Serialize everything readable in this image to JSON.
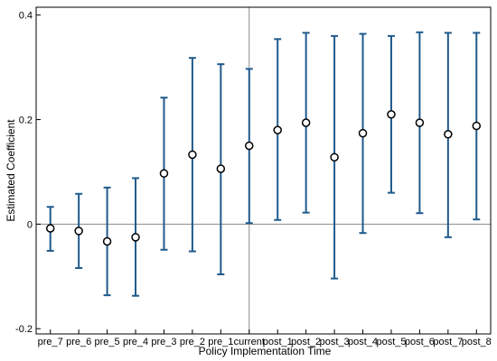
{
  "chart_data": {
    "type": "scatter",
    "subtype": "coefficient-plot-with-error-bars",
    "title": "",
    "xlabel": "Policy Implementation Time",
    "ylabel": "Estimated Coefficient",
    "ylim": [
      -0.21,
      0.415
    ],
    "yticks": [
      -0.2,
      0,
      0.2,
      0.4
    ],
    "ytick_labels": [
      "-0.2",
      "0",
      "0.2",
      "0.4"
    ],
    "categories": [
      "pre_7",
      "pre_6",
      "pre_5",
      "pre_4",
      "pre_3",
      "pre_2",
      "pre_1",
      "current",
      "post_1",
      "post_2",
      "post_3",
      "post_4",
      "post_5",
      "post_6",
      "post_7",
      "post_8"
    ],
    "series": [
      {
        "estimates": [
          -0.008,
          -0.013,
          -0.033,
          -0.025,
          0.097,
          0.133,
          0.106,
          0.15,
          0.18,
          0.194,
          0.128,
          0.174,
          0.21,
          0.194,
          0.172,
          0.188
        ],
        "ci_lower": [
          -0.051,
          -0.084,
          -0.136,
          -0.137,
          -0.049,
          -0.052,
          -0.096,
          0.002,
          0.008,
          0.022,
          -0.104,
          -0.017,
          0.06,
          0.021,
          -0.025,
          0.009
        ],
        "ci_upper": [
          0.033,
          0.058,
          0.07,
          0.088,
          0.242,
          0.318,
          0.306,
          0.297,
          0.354,
          0.366,
          0.36,
          0.364,
          0.36,
          0.367,
          0.366,
          0.366
        ]
      }
    ],
    "reference_lines": {
      "horizontal_y": 0,
      "vertical_at_category": "current"
    },
    "grid": false,
    "colors": {
      "error_bar": "#1f5a8c",
      "marker": "#000000",
      "reference_line": "#888888",
      "axis": "#000000"
    }
  }
}
